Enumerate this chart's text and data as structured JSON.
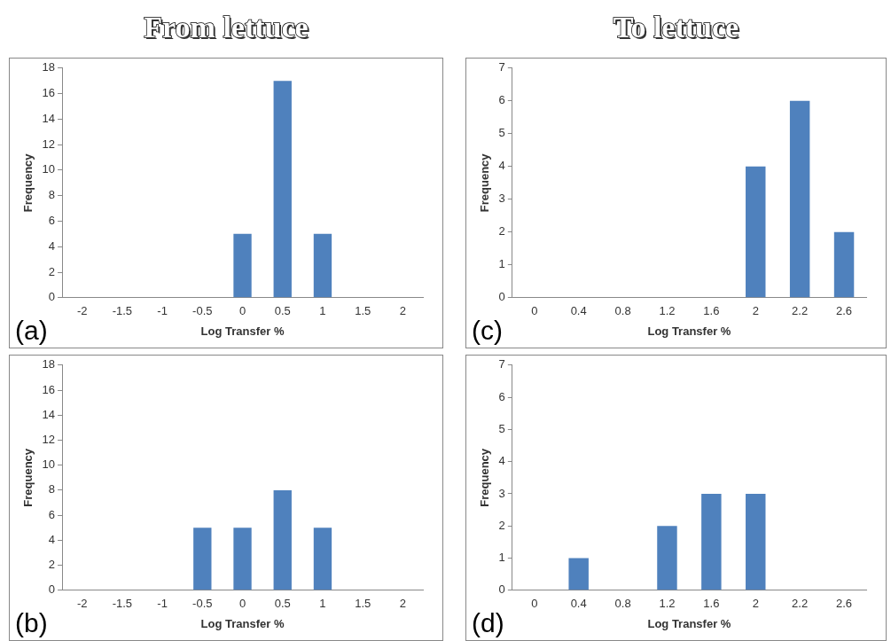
{
  "chart_data": [
    {
      "type": "bar",
      "title": "From lettuce",
      "categories": [
        "-2",
        "-1.5",
        "-1",
        "-0.5",
        "0",
        "0.5",
        "1",
        "1.5",
        "2"
      ],
      "values": [
        0,
        0,
        0,
        0,
        5,
        17,
        5,
        0,
        0
      ],
      "color": "#4f81bd",
      "xlabel": "Log Transfer %",
      "ylabel": "Frequency",
      "ylim": [
        0,
        18
      ],
      "yticks": [
        0,
        2,
        4,
        6,
        8,
        10,
        12,
        14,
        16,
        18
      ],
      "annotations": [
        "(a)"
      ]
    },
    {
      "type": "bar",
      "title": "To lettuce",
      "categories": [
        "0",
        "0.4",
        "0.8",
        "1.2",
        "1.6",
        "2",
        "2.2",
        "2.6"
      ],
      "values": [
        0,
        0,
        0,
        0,
        0,
        4,
        6,
        2
      ],
      "color": "#4f81bd",
      "xlabel": "Log Transfer %",
      "ylabel": "Frequency",
      "ylim": [
        0,
        7
      ],
      "yticks": [
        0,
        1,
        2,
        3,
        4,
        5,
        6,
        7
      ],
      "annotations": [
        "(c)"
      ]
    },
    {
      "type": "bar",
      "categories": [
        "-2",
        "-1.5",
        "-1",
        "-0.5",
        "0",
        "0.5",
        "1",
        "1.5",
        "2"
      ],
      "values": [
        0,
        0,
        0,
        5,
        5,
        8,
        5,
        0,
        0
      ],
      "color": "#4f81bd",
      "xlabel": "Log Transfer %",
      "ylabel": "Frequency",
      "ylim": [
        0,
        18
      ],
      "yticks": [
        0,
        2,
        4,
        6,
        8,
        10,
        12,
        14,
        16,
        18
      ],
      "annotations": [
        "(b)"
      ]
    },
    {
      "type": "bar",
      "categories": [
        "0",
        "0.4",
        "0.8",
        "1.2",
        "1.6",
        "2",
        "2.2",
        "2.6"
      ],
      "values": [
        0,
        1,
        0,
        2,
        3,
        3,
        0,
        0
      ],
      "color": "#4f81bd",
      "xlabel": "Log Transfer %",
      "ylabel": "Frequency",
      "ylim": [
        0,
        7
      ],
      "yticks": [
        0,
        1,
        2,
        3,
        4,
        5,
        6,
        7
      ],
      "annotations": [
        "(d)"
      ]
    }
  ]
}
